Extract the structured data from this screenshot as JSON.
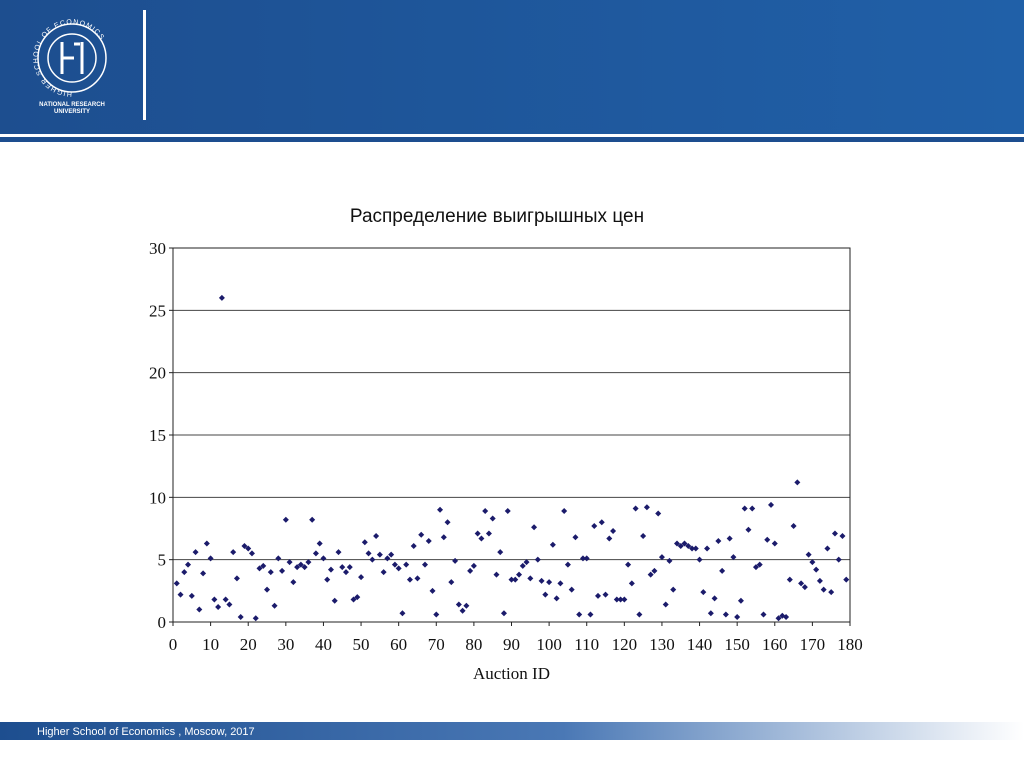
{
  "header": {
    "logo_ring": "HIGHER SCHOOL OF ECONOMICS",
    "university": [
      "NATIONAL RESEARCH",
      "UNIVERSITY"
    ]
  },
  "footer": "Higher School of Economics , Moscow, 2017",
  "chart_data": {
    "type": "scatter",
    "title": "Распределение выигрышных цен",
    "xlabel": "Auction ID",
    "color": "#1b1b6b",
    "grid": true,
    "xlim": [
      0,
      180
    ],
    "xticks": [
      0,
      10,
      20,
      30,
      40,
      50,
      60,
      70,
      80,
      90,
      100,
      110,
      120,
      130,
      140,
      150,
      160,
      170,
      180
    ],
    "ylim": [
      0,
      30
    ],
    "yticks": [
      0,
      5,
      10,
      15,
      20,
      25,
      30
    ],
    "x": [
      1,
      2,
      3,
      4,
      5,
      6,
      7,
      8,
      9,
      10,
      11,
      12,
      13,
      14,
      15,
      16,
      17,
      18,
      19,
      20,
      21,
      22,
      23,
      24,
      25,
      26,
      27,
      28,
      29,
      30,
      31,
      32,
      33,
      34,
      35,
      36,
      37,
      38,
      39,
      40,
      41,
      42,
      43,
      44,
      45,
      46,
      47,
      48,
      49,
      50,
      51,
      52,
      53,
      54,
      55,
      56,
      57,
      58,
      59,
      60,
      61,
      62,
      63,
      64,
      65,
      66,
      67,
      68,
      69,
      70,
      71,
      72,
      73,
      74,
      75,
      76,
      77,
      78,
      79,
      80,
      81,
      82,
      83,
      84,
      85,
      86,
      87,
      88,
      89,
      90,
      91,
      92,
      93,
      94,
      95,
      96,
      97,
      98,
      99,
      100,
      101,
      102,
      103,
      104,
      105,
      106,
      107,
      108,
      109,
      110,
      111,
      112,
      113,
      114,
      115,
      116,
      117,
      118,
      119,
      120,
      121,
      122,
      123,
      124,
      125,
      126,
      127,
      128,
      129,
      130,
      131,
      132,
      133,
      134,
      135,
      136,
      137,
      138,
      139,
      140,
      141,
      142,
      143,
      144,
      145,
      146,
      147,
      148,
      149,
      150,
      151,
      152,
      153,
      154,
      155,
      156,
      157,
      158,
      159,
      160,
      161,
      162,
      163,
      164,
      165,
      166,
      167,
      168,
      169,
      170,
      171,
      172,
      173,
      174,
      175,
      176,
      177,
      178,
      179
    ],
    "values": [
      3.1,
      2.2,
      4,
      4.6,
      2.1,
      5.6,
      1,
      3.9,
      6.3,
      5.1,
      1.8,
      1.2,
      26,
      1.8,
      1.4,
      5.6,
      3.5,
      0.4,
      6.1,
      5.9,
      5.5,
      0.3,
      4.3,
      4.5,
      2.6,
      4,
      1.3,
      5.1,
      4.1,
      8.2,
      4.8,
      3.2,
      4.4,
      4.6,
      4.4,
      4.8,
      8.2,
      5.5,
      6.3,
      5.1,
      3.4,
      4.2,
      1.7,
      5.6,
      4.4,
      4,
      4.4,
      1.8,
      2,
      3.6,
      6.4,
      5.5,
      5,
      6.9,
      5.4,
      4,
      5.1,
      5.4,
      4.6,
      4.3,
      0.7,
      4.6,
      3.4,
      6.1,
      3.5,
      7,
      4.6,
      6.5,
      2.5,
      0.6,
      9,
      6.8,
      8,
      3.2,
      4.9,
      1.4,
      0.9,
      1.3,
      4.1,
      4.5,
      7.1,
      6.7,
      8.9,
      7.1,
      8.3,
      3.8,
      5.6,
      0.7,
      8.9,
      3.4,
      3.4,
      3.8,
      4.5,
      4.8,
      3.5,
      7.6,
      5,
      3.3,
      2.2,
      3.2,
      6.2,
      1.9,
      3.1,
      8.9,
      4.6,
      2.6,
      6.8,
      0.6,
      5.1,
      5.1,
      0.6,
      7.7,
      2.1,
      8,
      2.2,
      6.7,
      7.3,
      1.8,
      1.8,
      1.8,
      4.6,
      3.1,
      9.1,
      0.6,
      6.9,
      9.2,
      3.8,
      4.1,
      8.7,
      5.2,
      1.4,
      4.9,
      2.6,
      6.3,
      6.1,
      6.3,
      6.1,
      5.9,
      5.9,
      5,
      2.4,
      5.9,
      0.7,
      1.9,
      6.5,
      4.1,
      0.6,
      6.7,
      5.2,
      0.4,
      1.7,
      9.1,
      7.4,
      9.1,
      4.4,
      4.6,
      0.6,
      6.6,
      9.4,
      6.3,
      0.3,
      0.5,
      0.4,
      3.4,
      7.7,
      11.2,
      3.1,
      2.8,
      5.4,
      4.8,
      4.2,
      3.3,
      2.6,
      5.9,
      2.4,
      7.1,
      5,
      6.9,
      3.4
    ]
  }
}
